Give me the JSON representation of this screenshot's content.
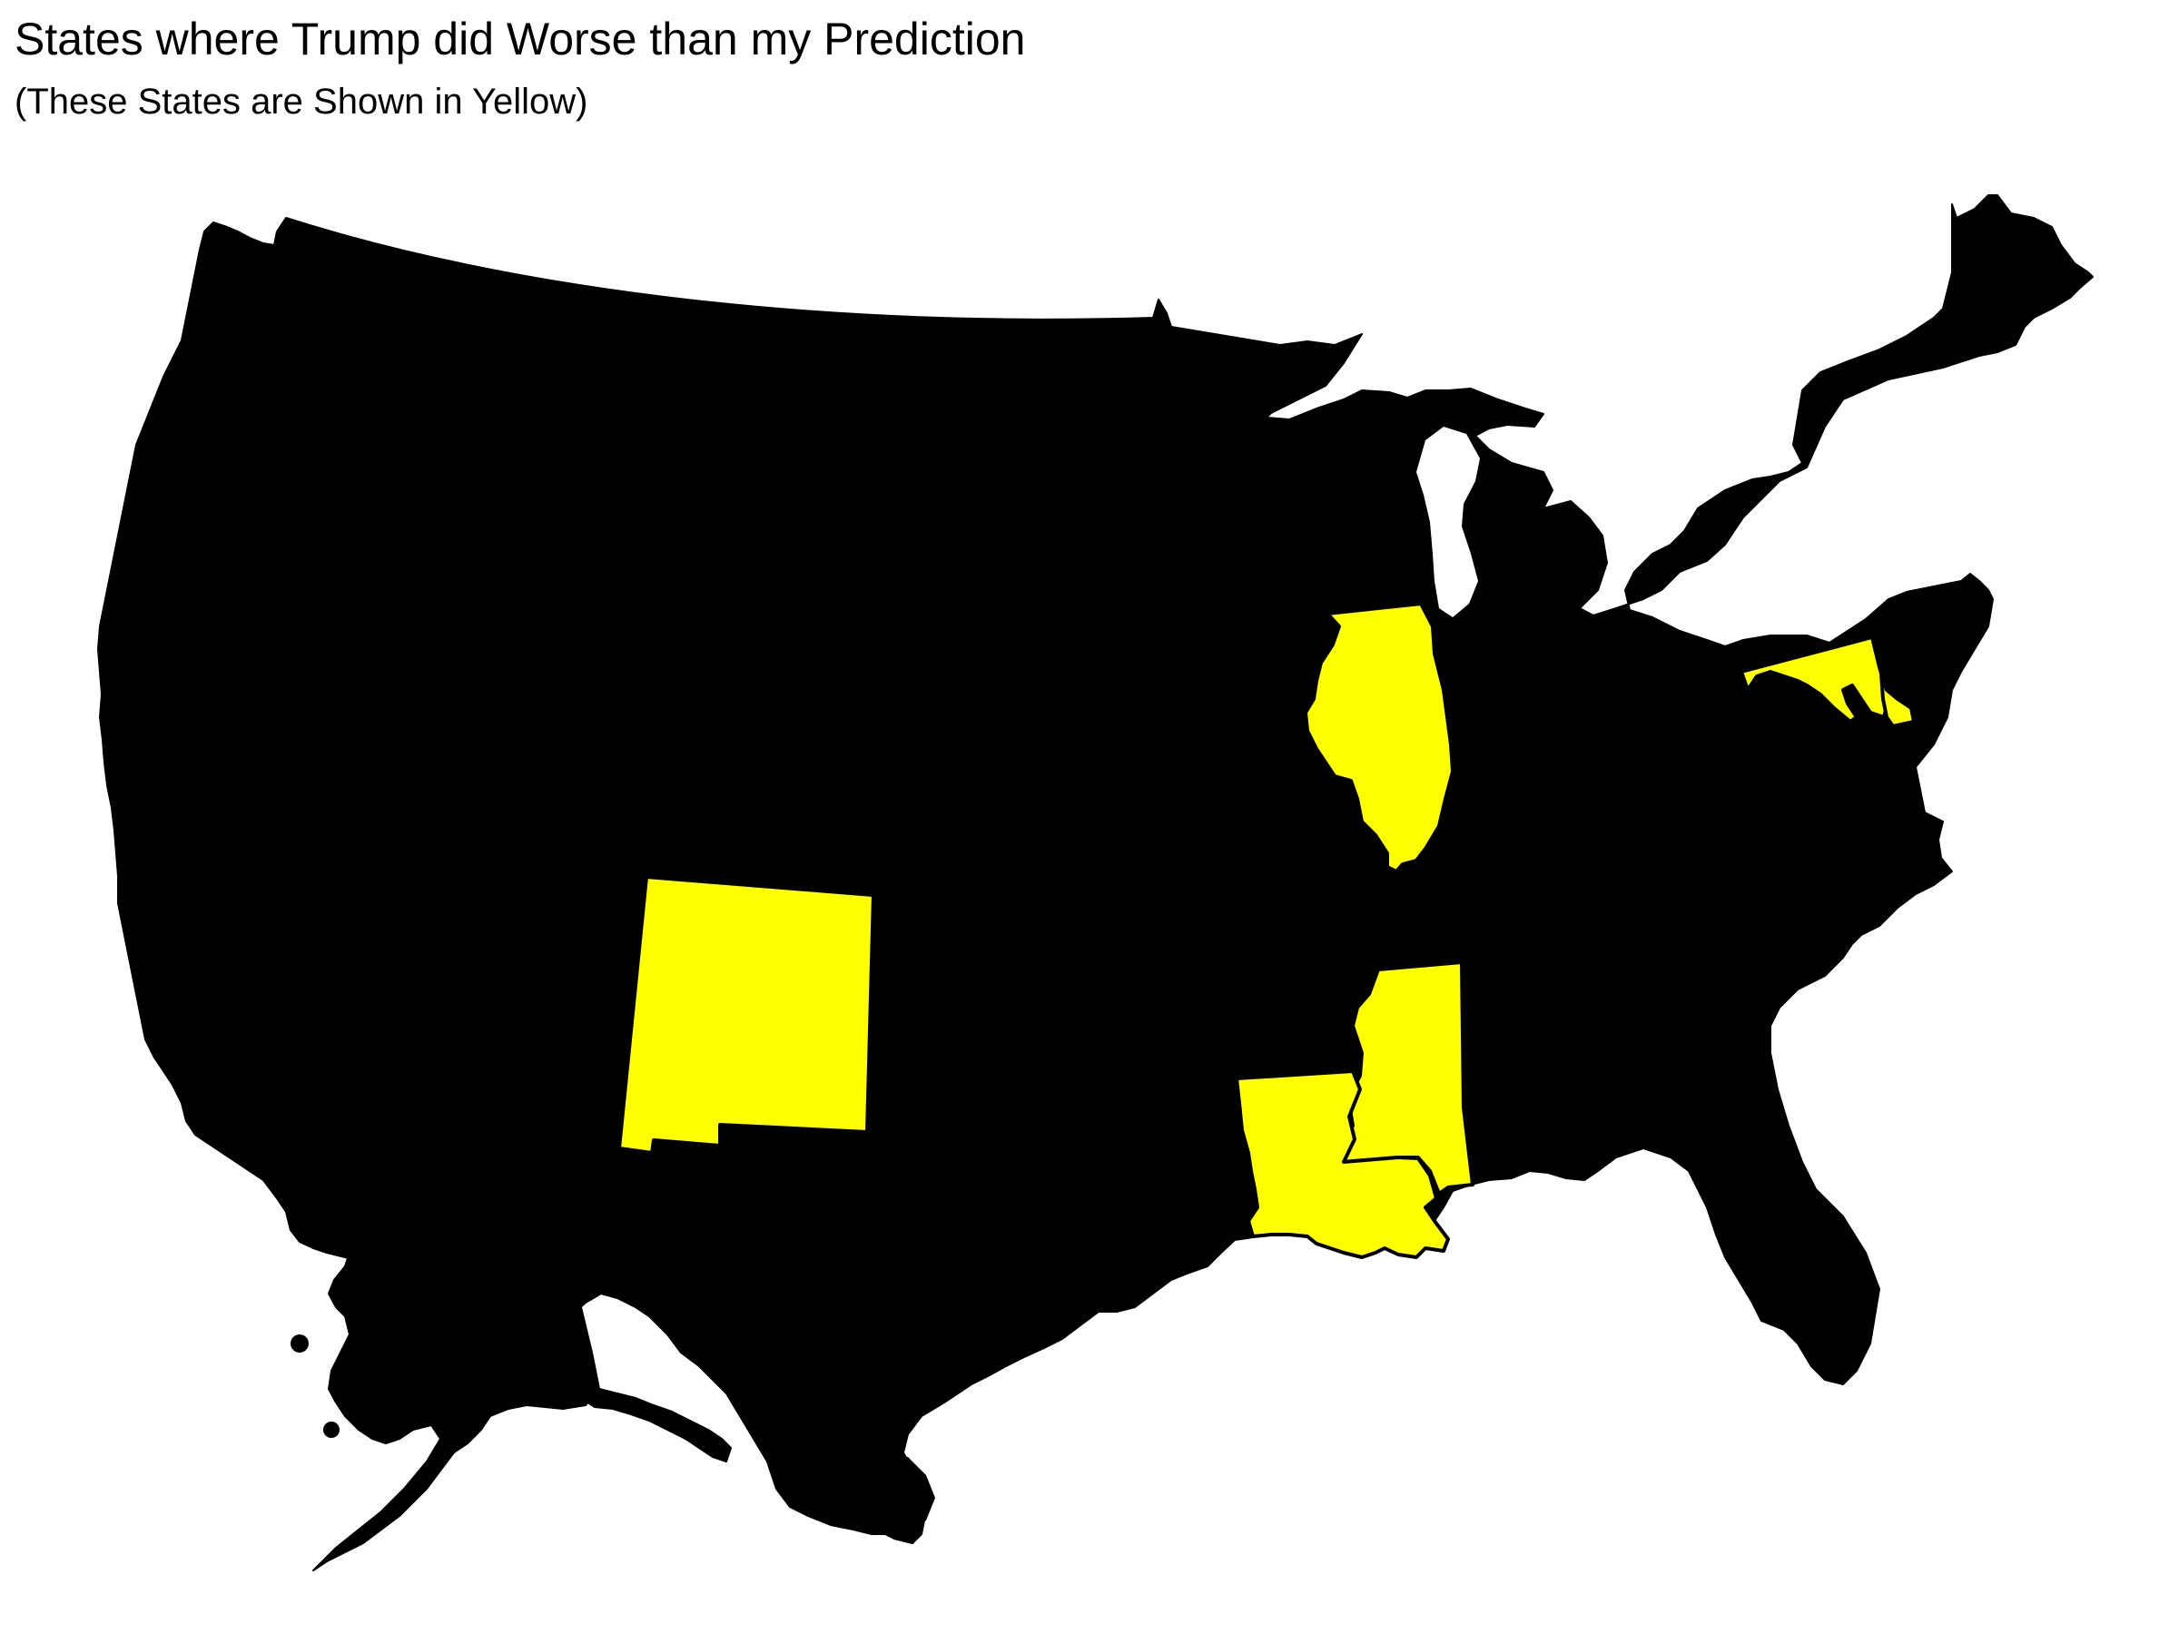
{
  "title": "States where Trump did Worse than my Prediction",
  "subtitle": "(These States are Shown in Yellow)",
  "colors": {
    "highlight": "#ffff00",
    "other": "#000000",
    "background": "#ffffff"
  },
  "highlighted_states": [
    "New Mexico",
    "Illinois",
    "Louisiana",
    "Mississippi",
    "Maryland",
    "Delaware"
  ]
}
